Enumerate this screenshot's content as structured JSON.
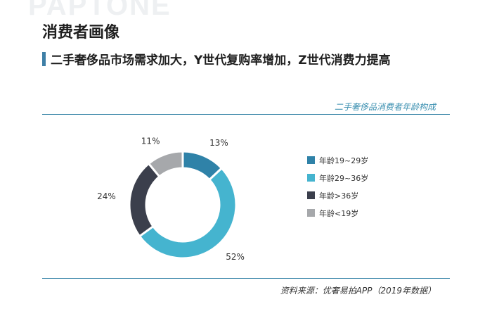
{
  "watermark": "PAPTONE",
  "header": {
    "title": "消费者画像",
    "subtitle": "二手奢侈品市场需求加大，Y世代复购率增加，Z世代消费力提高"
  },
  "source": "资料来源：优奢易拍APP（2019年数据）",
  "chart_data": {
    "type": "pie",
    "variant": "donut",
    "title": "二手奢侈品消费者年龄构成",
    "categories": [
      "年龄19~29岁",
      "年龄29~36岁",
      "年龄>36岁",
      "年龄<19岁"
    ],
    "values": [
      13,
      52,
      24,
      11
    ],
    "value_labels": [
      "13%",
      "52%",
      "24%",
      "11%"
    ],
    "colors": [
      "#2f82a8",
      "#45b4cf",
      "#3b3f4c",
      "#a6a8ab"
    ],
    "legend": "right"
  }
}
